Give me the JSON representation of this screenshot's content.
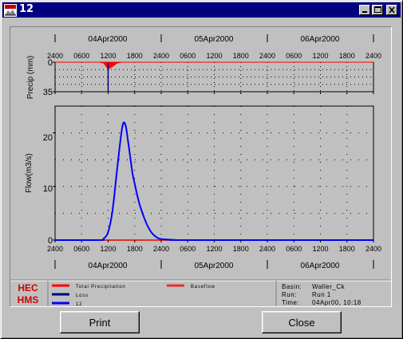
{
  "window": {
    "title": "12"
  },
  "chart_data": {
    "type": "line",
    "date_labels": [
      "04Apr2000",
      "05Apr2000",
      "06Apr2000"
    ],
    "hour_ticks": [
      "2400",
      "0600",
      "1200",
      "1800",
      "2400",
      "0600",
      "1200",
      "1800",
      "2400",
      "0600",
      "1200",
      "1800",
      "2400"
    ],
    "precip": {
      "ylabel": "Precip (mm)",
      "ylim": [
        0,
        35
      ],
      "ytick_labels": [
        "0",
        "35"
      ]
    },
    "flow": {
      "ylabel": "Flow(m3/s)",
      "ylim": [
        0,
        25
      ],
      "ytick_labels": [
        "0",
        "10",
        "20"
      ]
    },
    "x_unit": "hours from 2400 on 03Apr2000",
    "series": [
      {
        "name": "Total Precipitation",
        "color": "#ff0000",
        "x": [
          10,
          11,
          12,
          13,
          14,
          15
        ],
        "y": [
          0,
          1,
          8,
          5,
          1,
          0
        ]
      },
      {
        "name": "Loss",
        "color": "#000080",
        "x": [
          12,
          12,
          12
        ],
        "y": [
          0,
          35,
          0
        ]
      },
      {
        "name": "12",
        "color": "#0000ff",
        "x": [
          0,
          10,
          11,
          12,
          13,
          14,
          15,
          15.5,
          16,
          16.5,
          17,
          17.5,
          18,
          19,
          20,
          21,
          22,
          23,
          24,
          27,
          30,
          72
        ],
        "y": [
          0,
          0,
          0.3,
          1.5,
          5.5,
          13,
          20,
          21.9,
          21.2,
          18.5,
          15.5,
          12.5,
          10.5,
          7,
          4.5,
          2.5,
          1.2,
          0.5,
          0.2,
          0.05,
          0,
          0
        ]
      },
      {
        "name": "Baseflow",
        "color": "#e0302a",
        "x": [
          0,
          72
        ],
        "y": [
          0,
          0
        ]
      }
    ]
  },
  "legend": {
    "logo_line1": "HEC",
    "logo_line2": "HMS",
    "items": [
      {
        "label": "Total Precipitation",
        "color": "#ff0000"
      },
      {
        "label": "Loss",
        "color": "#000080"
      },
      {
        "label": "12",
        "color": "#0000ff"
      },
      {
        "label": "Baseflow",
        "color": "#e0302a"
      }
    ]
  },
  "info": {
    "basin_label": "Basin:",
    "basin_value": "Waller_Ck",
    "run_label": "Run:",
    "run_value": "Run 1",
    "time_label": "Time:",
    "time_value": "04Apr00, 10:18"
  },
  "buttons": {
    "print": "Print",
    "close": "Close"
  }
}
